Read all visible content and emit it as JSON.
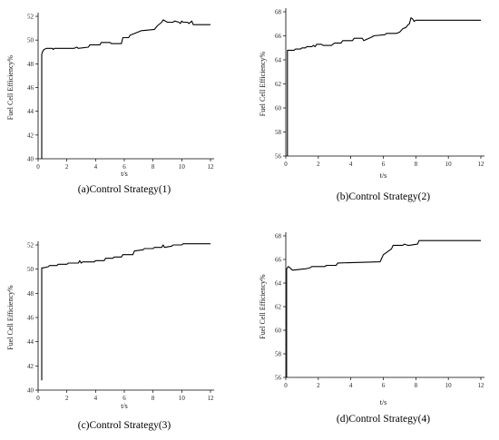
{
  "chart_data": [
    {
      "type": "line",
      "caption": "(a)Control Strategy(1)",
      "xlabel": "t/s",
      "ylabel": "Fuel Cell Efficiency%",
      "xlim": [
        0,
        12
      ],
      "ylim": [
        40,
        52
      ],
      "xticks": [
        0,
        2,
        4,
        6,
        8,
        10,
        12
      ],
      "yticks": [
        40,
        42,
        44,
        46,
        48,
        50,
        52
      ],
      "series": [
        {
          "x": [
            0.25,
            0.25,
            0.3,
            0.4,
            0.6,
            1.0,
            1.05,
            1.15,
            1.5,
            2.5,
            2.7,
            2.8,
            3.5,
            3.6,
            4.3,
            4.4,
            5.0,
            5.1,
            5.8,
            5.9,
            6.3,
            6.4,
            7.2,
            7.3,
            8.1,
            8.3,
            8.6,
            8.7,
            9.0,
            9.1,
            9.4,
            9.5,
            9.8,
            9.9,
            10.0,
            10.1,
            10.4,
            10.5,
            10.7,
            10.8,
            12.0
          ],
          "y": [
            40.0,
            48.8,
            49.0,
            49.2,
            49.3,
            49.3,
            49.2,
            49.3,
            49.3,
            49.3,
            49.4,
            49.3,
            49.4,
            49.6,
            49.6,
            49.8,
            49.8,
            49.7,
            49.7,
            50.2,
            50.2,
            50.4,
            50.8,
            50.8,
            50.9,
            51.2,
            51.5,
            51.7,
            51.5,
            51.5,
            51.5,
            51.6,
            51.5,
            51.4,
            51.6,
            51.5,
            51.5,
            51.4,
            51.6,
            51.3,
            51.3
          ]
        }
      ]
    },
    {
      "type": "line",
      "caption": "(b)Control Strategy(2)",
      "xlabel": "t/s",
      "ylabel": "Fuel Cell Efficiency%",
      "xlim": [
        0,
        12
      ],
      "ylim": [
        56,
        68
      ],
      "xticks": [
        0,
        2,
        4,
        6,
        8,
        10,
        12
      ],
      "yticks": [
        56,
        58,
        60,
        62,
        64,
        66,
        68
      ],
      "series": [
        {
          "x": [
            0.1,
            0.1,
            0.15,
            0.5,
            0.6,
            0.9,
            1.0,
            1.2,
            1.3,
            1.6,
            1.7,
            1.8,
            1.9,
            2.2,
            2.3,
            2.8,
            3.0,
            3.4,
            3.5,
            4.1,
            4.2,
            4.7,
            4.8,
            5.3,
            5.4,
            6.1,
            6.2,
            6.8,
            7.0,
            7.2,
            7.4,
            7.5,
            7.6,
            7.7,
            7.8,
            7.9,
            8.0,
            12.0
          ],
          "y": [
            56.0,
            64.8,
            64.8,
            64.8,
            64.9,
            64.9,
            65.0,
            65.0,
            65.1,
            65.1,
            65.2,
            65.1,
            65.3,
            65.3,
            65.2,
            65.2,
            65.4,
            65.4,
            65.6,
            65.6,
            65.8,
            65.8,
            65.6,
            65.9,
            66.0,
            66.1,
            66.2,
            66.2,
            66.3,
            66.6,
            66.7,
            66.9,
            67.0,
            67.5,
            67.4,
            67.2,
            67.3,
            67.3
          ]
        }
      ]
    },
    {
      "type": "line",
      "caption": "(c)Control Strategy(3)",
      "xlabel": "t/s",
      "ylabel": "Fuel Cell Efficiency%",
      "xlim": [
        0,
        12
      ],
      "ylim": [
        40,
        52
      ],
      "xticks": [
        0,
        2,
        4,
        6,
        8,
        10,
        12
      ],
      "yticks": [
        40,
        42,
        44,
        46,
        48,
        50,
        52
      ],
      "series": [
        {
          "x": [
            0.25,
            0.25,
            0.35,
            0.7,
            0.8,
            1.3,
            1.4,
            2.0,
            2.1,
            2.8,
            2.9,
            3.0,
            3.1,
            3.9,
            4.0,
            4.6,
            4.7,
            5.2,
            5.3,
            5.8,
            5.9,
            6.6,
            6.7,
            7.3,
            7.4,
            8.0,
            8.1,
            8.6,
            8.7,
            8.8,
            9.3,
            9.4,
            10.0,
            10.1,
            12.0
          ],
          "y": [
            40.8,
            50.1,
            50.1,
            50.2,
            50.3,
            50.3,
            50.4,
            50.4,
            50.5,
            50.5,
            50.7,
            50.5,
            50.6,
            50.6,
            50.7,
            50.7,
            50.9,
            50.9,
            51.0,
            51.0,
            51.2,
            51.2,
            51.5,
            51.6,
            51.7,
            51.7,
            51.8,
            51.8,
            52.0,
            51.8,
            51.9,
            52.0,
            52.0,
            52.1,
            52.1
          ]
        }
      ]
    },
    {
      "type": "line",
      "caption": "(d)Control Strategy(4)",
      "xlabel": "t/s",
      "ylabel": "Fuel Cell Efficiency%",
      "xlim": [
        0,
        12
      ],
      "ylim": [
        56,
        68
      ],
      "xticks": [
        0,
        2,
        4,
        6,
        8,
        10,
        12
      ],
      "yticks": [
        56,
        58,
        60,
        62,
        64,
        66,
        68
      ],
      "series": [
        {
          "x": [
            0.05,
            0.05,
            0.15,
            0.25,
            0.4,
            0.5,
            1.1,
            1.2,
            1.5,
            1.6,
            2.4,
            2.5,
            3.1,
            3.2,
            5.8,
            6.0,
            6.5,
            6.6,
            7.2,
            7.3,
            7.5,
            7.6,
            8.1,
            8.2,
            12.0
          ],
          "y": [
            56.0,
            65.2,
            65.4,
            65.3,
            65.1,
            65.1,
            65.2,
            65.2,
            65.3,
            65.4,
            65.4,
            65.5,
            65.5,
            65.7,
            65.8,
            66.4,
            66.9,
            67.2,
            67.2,
            67.3,
            67.2,
            67.2,
            67.3,
            67.6,
            67.6
          ]
        }
      ]
    }
  ]
}
